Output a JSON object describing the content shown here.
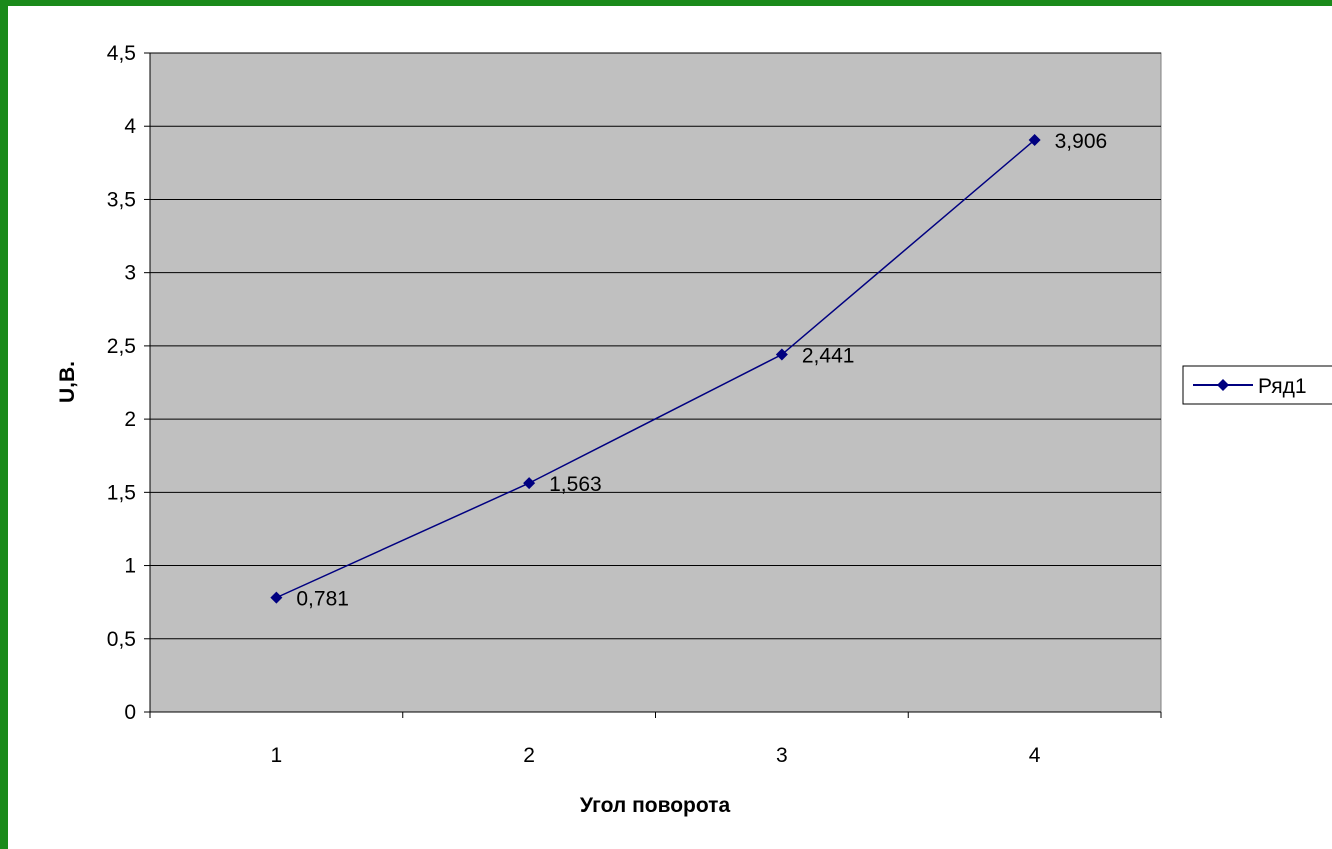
{
  "chart_data": {
    "type": "line",
    "title": "",
    "xlabel": "Угол поворота",
    "ylabel": "U,В.",
    "categories": [
      "1",
      "2",
      "3",
      "4"
    ],
    "series": [
      {
        "name": "Ряд1",
        "values": [
          0.781,
          1.563,
          2.441,
          3.906
        ],
        "data_labels": [
          "0,781",
          "1,563",
          "2,441",
          "3,906"
        ]
      }
    ],
    "ylim": [
      0,
      4.5
    ],
    "yticks": [
      0,
      0.5,
      1,
      1.5,
      2,
      2.5,
      3,
      3.5,
      4,
      4.5
    ],
    "ytick_labels": [
      "0",
      "0,5",
      "1",
      "1,5",
      "2",
      "2,5",
      "3",
      "3,5",
      "4",
      "4,5"
    ],
    "grid": true,
    "legend": "right",
    "colors": {
      "series": "#000080",
      "plot_background": "#c0c0c0",
      "frame": "#1a8a1a"
    }
  }
}
